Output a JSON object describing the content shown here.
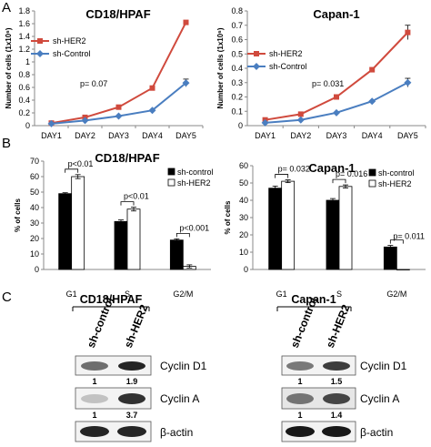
{
  "panels": {
    "A": "A",
    "B": "B",
    "C": "C"
  },
  "chart_data": [
    {
      "type": "line",
      "title": "CD18/HPAF",
      "categories": [
        "DAY1",
        "DAY2",
        "DAY3",
        "DAY4",
        "DAY5"
      ],
      "ylabel": "Number of cells (1x10⁶)",
      "ylim": [
        0,
        1.8
      ],
      "yticks": [
        "0",
        "0.2",
        "0.4",
        "0.6",
        "0.8",
        "1",
        "1.2",
        "1.4",
        "1.6",
        "1.8"
      ],
      "legend_placement": "upper-left",
      "annotation": "p= 0.07",
      "series": [
        {
          "name": "sh-HER2",
          "color": "#d04a3d",
          "marker": "square",
          "values": [
            0.04,
            0.13,
            0.29,
            0.59,
            1.62
          ]
        },
        {
          "name": "sh-Control",
          "color": "#4a7ec0",
          "marker": "diamond",
          "values": [
            0.03,
            0.08,
            0.15,
            0.24,
            0.67
          ],
          "errors": [
            0,
            0,
            0,
            0,
            0.06
          ]
        }
      ]
    },
    {
      "type": "line",
      "title": "Capan-1",
      "categories": [
        "DAY1",
        "DAY2",
        "DAY3",
        "DAY4",
        "DAY5"
      ],
      "ylabel": "Number of cells (1x10⁶)",
      "ylim": [
        0,
        0.8
      ],
      "yticks": [
        "0",
        "0.1",
        "0.2",
        "0.3",
        "0.4",
        "0.5",
        "0.6",
        "0.7",
        "0.8"
      ],
      "legend_placement": "upper-left",
      "annotation": "p= 0.031",
      "series": [
        {
          "name": "sh-HER2",
          "color": "#d04a3d",
          "marker": "square",
          "values": [
            0.04,
            0.08,
            0.2,
            0.39,
            0.65
          ],
          "errors": [
            0,
            0,
            0,
            0,
            0.05
          ]
        },
        {
          "name": "sh-Control",
          "color": "#4a7ec0",
          "marker": "diamond",
          "values": [
            0.02,
            0.04,
            0.09,
            0.17,
            0.3
          ],
          "errors": [
            0,
            0,
            0,
            0,
            0.03
          ]
        }
      ]
    },
    {
      "type": "bar",
      "title": "CD18/HPAF",
      "categories": [
        "G1",
        "S",
        "G2/M"
      ],
      "ylabel": "% of cells",
      "ylim": [
        0,
        70
      ],
      "yticks": [
        "0",
        "10",
        "20",
        "30",
        "40",
        "50",
        "60",
        "70"
      ],
      "legend_placement": "top-right",
      "series": [
        {
          "name": "sh-control",
          "fill": "#000000",
          "values": [
            49,
            31,
            19
          ],
          "errors": [
            0.6,
            1,
            0.8
          ]
        },
        {
          "name": "sh-HER2",
          "fill": "#ffffff",
          "values": [
            60,
            39,
            2
          ],
          "errors": [
            1.3,
            1.2,
            1
          ]
        }
      ],
      "pvalues": [
        "p<0.01",
        "p<0.01",
        "p<0.001"
      ]
    },
    {
      "type": "bar",
      "title": "Capan-1",
      "categories": [
        "G1",
        "S",
        "G2/M"
      ],
      "ylabel": "% of cells",
      "ylim": [
        0,
        60
      ],
      "yticks": [
        "0",
        "10",
        "20",
        "30",
        "40",
        "50",
        "60"
      ],
      "legend_placement": "top-right",
      "series": [
        {
          "name": "sh-control",
          "fill": "#000000",
          "values": [
            47,
            40,
            13
          ],
          "errors": [
            1.2,
            1,
            0.9
          ]
        },
        {
          "name": "sh-HER2",
          "fill": "#ffffff",
          "values": [
            51,
            48,
            0
          ],
          "errors": [
            0.8,
            0.9,
            0
          ]
        }
      ],
      "pvalues": [
        "p= 0.032",
        "p= 0.016",
        "p= 0.011"
      ]
    }
  ],
  "blots": [
    {
      "title": "CD18/HPAF",
      "lanes": [
        "sh-control",
        "sh-HER2"
      ],
      "rows": [
        {
          "protein": "Cyclin D1",
          "values": [
            "1",
            "1.9"
          ],
          "intensity": [
            0.55,
            0.85
          ]
        },
        {
          "protein": "Cyclin A",
          "values": [
            "1",
            "3.7"
          ],
          "intensity": [
            0.2,
            0.8
          ]
        },
        {
          "protein": "β-actin",
          "values": [],
          "intensity": [
            0.85,
            0.85
          ]
        }
      ]
    },
    {
      "title": "Capan-1",
      "lanes": [
        "sh-control",
        "sh-HER2"
      ],
      "rows": [
        {
          "protein": "Cyclin D1",
          "values": [
            "1",
            "1.5"
          ],
          "intensity": [
            0.5,
            0.75
          ]
        },
        {
          "protein": "Cyclin A",
          "values": [
            "1",
            "1.4"
          ],
          "intensity": [
            0.5,
            0.7
          ]
        },
        {
          "protein": "β-actin",
          "values": [],
          "intensity": [
            0.9,
            0.9
          ]
        }
      ]
    }
  ]
}
